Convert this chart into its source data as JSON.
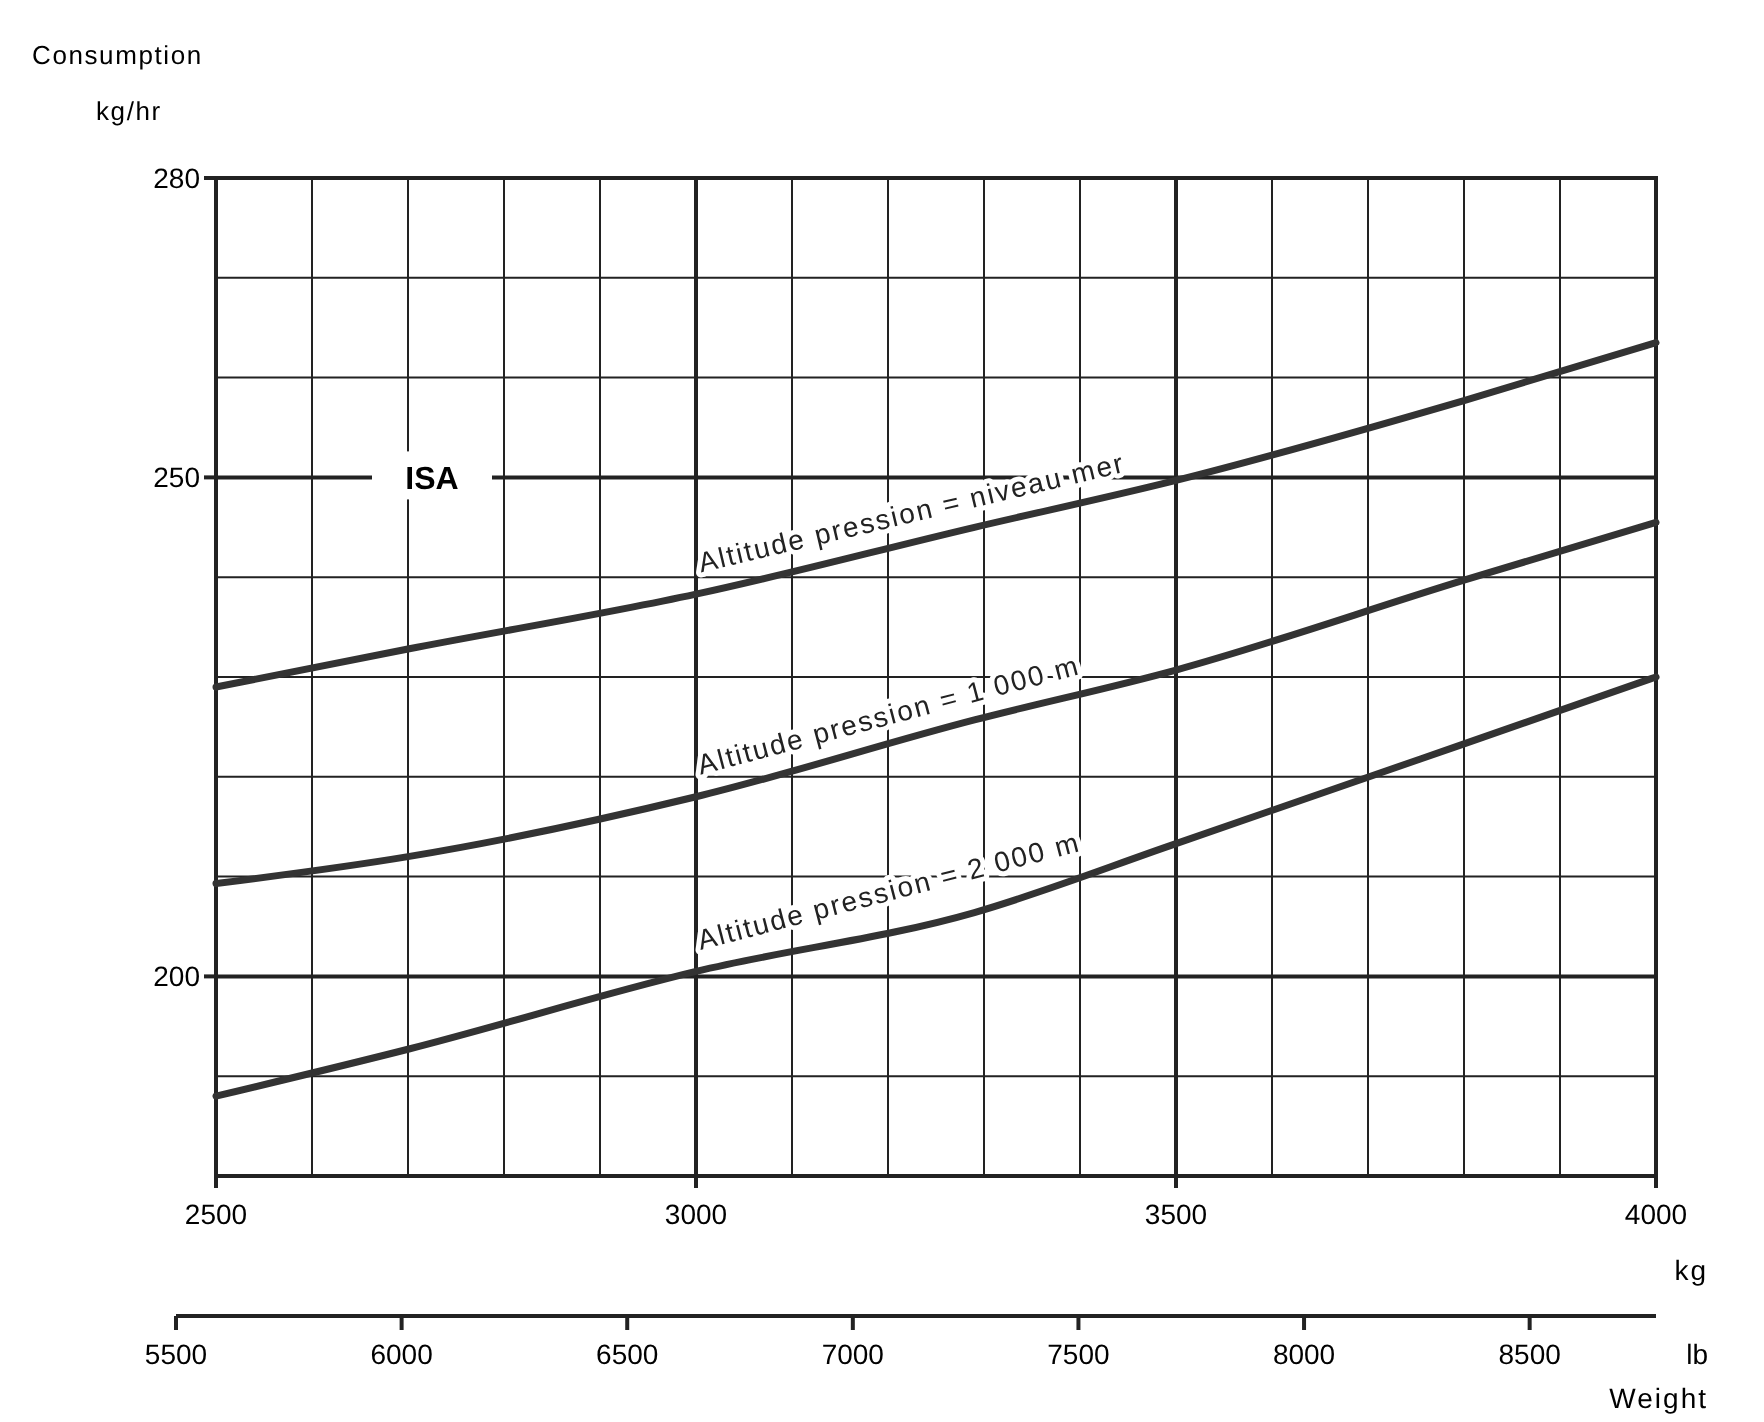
{
  "chart_data": {
    "type": "line",
    "ylabel": "Consumption kg/hr",
    "xlabel": "kg",
    "x2label": "lb",
    "annotations": [
      "ISA",
      "Weight"
    ],
    "xlim": [
      2500,
      4000
    ],
    "xticks": [
      2500,
      3000,
      3500,
      4000
    ],
    "x2lim": [
      5500,
      8780
    ],
    "x2ticks": [
      5500,
      6000,
      6500,
      7000,
      7500,
      8000,
      8500
    ],
    "ylim": [
      180,
      280
    ],
    "yticks": [
      200,
      250,
      280
    ],
    "grid": true,
    "line_style": "solid",
    "marker": "none",
    "series": [
      {
        "name": "Altitude pression = niveau mer",
        "color": "#333333",
        "x": [
          2500,
          2700,
          3000,
          3290,
          3500,
          3800,
          4000
        ],
        "values": [
          229,
          232.8,
          238.3,
          245,
          249.7,
          257.7,
          263.5
        ]
      },
      {
        "name": "Altitude pression = 1 000 m",
        "color": "#333333",
        "x": [
          2500,
          2700,
          3000,
          3290,
          3500,
          3800,
          4000
        ],
        "values": [
          209.3,
          212,
          218,
          225.7,
          230.7,
          239.7,
          245.5
        ]
      },
      {
        "name": "Altitude pression = 2 000 m",
        "color": "#333333",
        "x": [
          2500,
          2700,
          3000,
          3290,
          3500,
          3800,
          4000
        ],
        "values": [
          188,
          192.7,
          200.5,
          206.4,
          213.3,
          223.3,
          230
        ]
      }
    ]
  }
}
